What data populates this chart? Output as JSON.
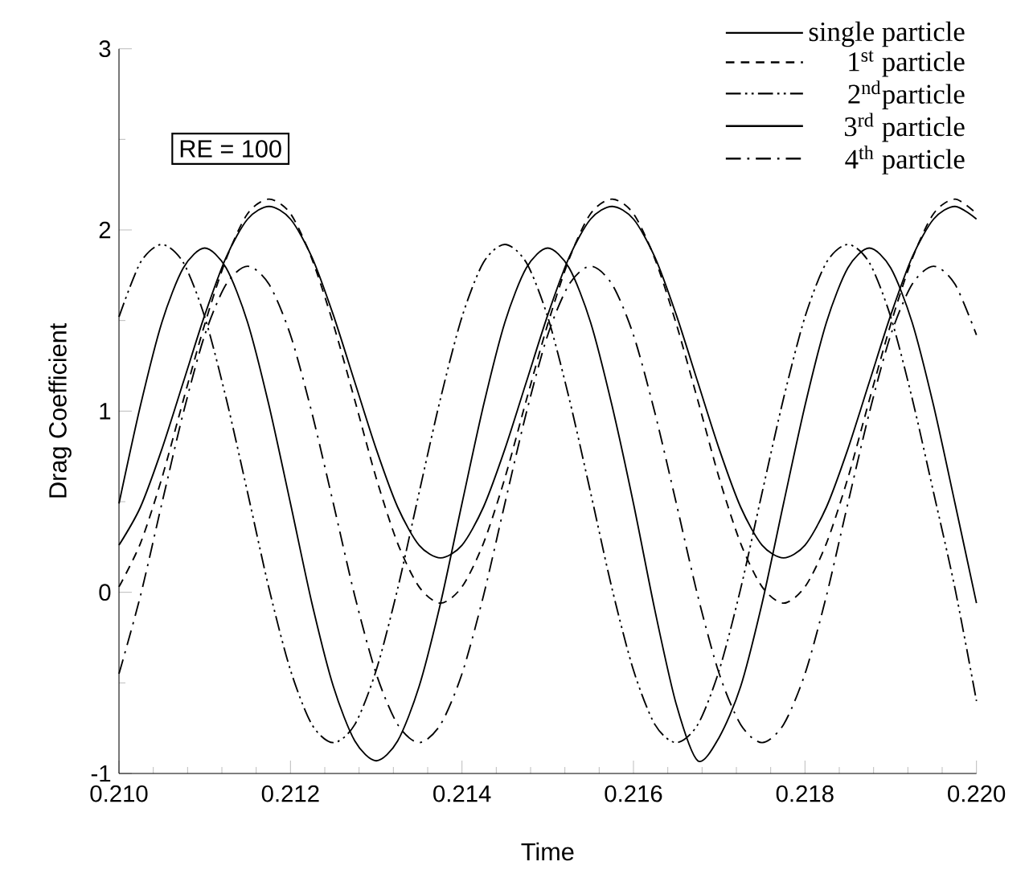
{
  "chart_data": {
    "type": "line",
    "xlabel": "Time",
    "ylabel": "Drag Coefficient",
    "x": [
      0.21,
      0.21025,
      0.2105,
      0.21075,
      0.211,
      0.21125,
      0.2115,
      0.21175,
      0.212,
      0.21225,
      0.2125,
      0.21275,
      0.213,
      0.21325,
      0.2135,
      0.21375,
      0.214,
      0.21425,
      0.2145,
      0.21475,
      0.215,
      0.21525,
      0.2155,
      0.21575,
      0.216,
      0.21625,
      0.2165,
      0.21675,
      0.217,
      0.21725,
      0.2175,
      0.21775,
      0.218,
      0.21825,
      0.2185,
      0.21875,
      0.219,
      0.21925,
      0.2195,
      0.21975,
      0.22
    ],
    "series": [
      {
        "name": "single particle",
        "color": "#000000",
        "line_style": "solid",
        "values": [
          0.26,
          0.47,
          0.79,
          1.16,
          1.53,
          1.85,
          2.06,
          2.13,
          2.06,
          1.85,
          1.53,
          1.16,
          0.79,
          0.47,
          0.26,
          0.19,
          0.26,
          0.47,
          0.79,
          1.16,
          1.53,
          1.85,
          2.06,
          2.13,
          2.06,
          1.85,
          1.53,
          1.16,
          0.79,
          0.47,
          0.26,
          0.19,
          0.26,
          0.47,
          0.79,
          1.16,
          1.53,
          1.85,
          2.06,
          2.13,
          2.06
        ]
      },
      {
        "name": "1$^{st}$ particle",
        "color": "#000000",
        "line_style": "dashed",
        "values": [
          0.03,
          0.27,
          0.63,
          1.06,
          1.48,
          1.84,
          2.09,
          2.17,
          2.09,
          1.84,
          1.48,
          1.06,
          0.63,
          0.27,
          0.03,
          -0.06,
          0.03,
          0.27,
          0.63,
          1.06,
          1.48,
          1.84,
          2.09,
          2.17,
          2.09,
          1.84,
          1.48,
          1.06,
          0.63,
          0.27,
          0.03,
          -0.06,
          0.03,
          0.27,
          0.63,
          1.06,
          1.48,
          1.84,
          2.09,
          2.17,
          2.09
        ]
      },
      {
        "name": "2$^{nd}$particle",
        "color": "#000000",
        "line_style": "dashdotdot",
        "values": [
          1.52,
          1.82,
          1.92,
          1.82,
          1.52,
          1.07,
          0.55,
          0.02,
          -0.43,
          -0.73,
          -0.83,
          -0.73,
          -0.43,
          0.02,
          0.55,
          1.07,
          1.52,
          1.82,
          1.92,
          1.82,
          1.52,
          1.07,
          0.55,
          0.02,
          -0.43,
          -0.73,
          -0.83,
          -0.73,
          -0.43,
          0.02,
          0.55,
          1.07,
          1.52,
          1.82,
          1.92,
          1.82,
          1.52,
          1.07,
          0.55,
          0.02,
          -0.6
        ]
      },
      {
        "name": "3$^{rd}$ particle",
        "color": "#000000",
        "line_style": "solid",
        "values": [
          0.49,
          1.03,
          1.49,
          1.79,
          1.9,
          1.79,
          1.49,
          1.03,
          0.49,
          -0.06,
          -0.52,
          -0.82,
          -0.93,
          -0.82,
          -0.52,
          -0.06,
          0.49,
          1.03,
          1.49,
          1.79,
          1.9,
          1.79,
          1.49,
          1.03,
          0.49,
          -0.1,
          -0.62,
          -0.93,
          -0.8,
          -0.52,
          -0.06,
          0.49,
          1.03,
          1.49,
          1.79,
          1.9,
          1.79,
          1.49,
          1.03,
          0.49,
          -0.06
        ]
      },
      {
        "name": "4$^{th}$ particle",
        "color": "#000000",
        "line_style": "dashdot",
        "values": [
          -0.45,
          -0.02,
          0.49,
          0.99,
          1.42,
          1.7,
          1.8,
          1.7,
          1.42,
          0.99,
          0.49,
          -0.02,
          -0.45,
          -0.73,
          -0.83,
          -0.73,
          -0.45,
          -0.02,
          0.49,
          0.99,
          1.42,
          1.7,
          1.8,
          1.7,
          1.42,
          0.99,
          0.49,
          -0.02,
          -0.45,
          -0.73,
          -0.83,
          -0.73,
          -0.45,
          -0.02,
          0.49,
          0.99,
          1.42,
          1.7,
          1.8,
          1.7,
          1.42
        ]
      }
    ],
    "xlim": [
      0.21,
      0.22
    ],
    "xticks": [
      {
        "value": 0.21,
        "label": "0.210"
      },
      {
        "value": 0.212,
        "label": "0.212"
      },
      {
        "value": 0.214,
        "label": "0.214"
      },
      {
        "value": 0.216,
        "label": "0.216"
      },
      {
        "value": 0.218,
        "label": "0.218"
      },
      {
        "value": 0.22,
        "label": "0.220"
      }
    ],
    "ylim": [
      -1,
      3
    ],
    "yticks": [
      -1,
      0,
      1,
      2,
      3
    ],
    "legend": "top right",
    "grid": false,
    "marker": "none",
    "annotations": [
      "RE = 100"
    ]
  }
}
